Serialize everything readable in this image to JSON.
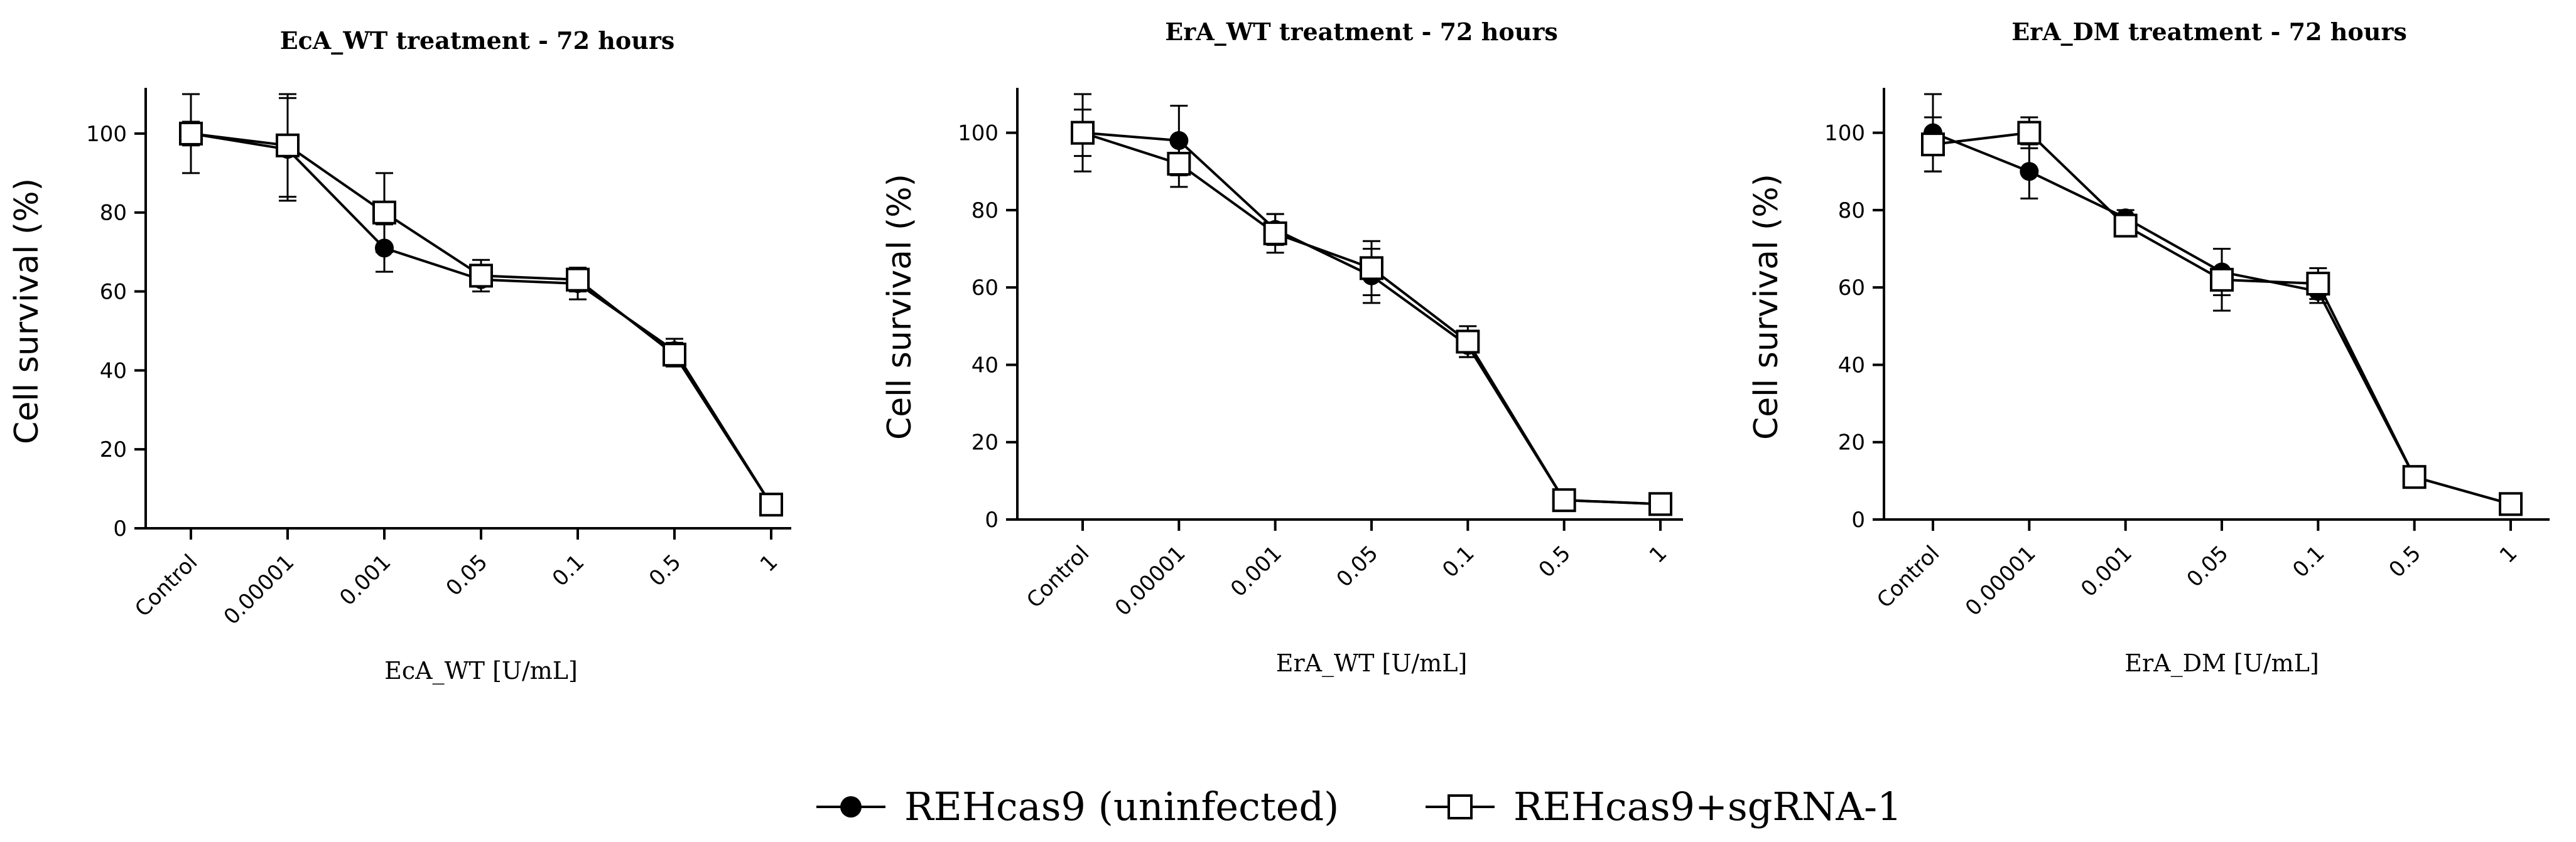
{
  "chart_data": [
    {
      "type": "line",
      "title": "EcA_WT treatment - 72 hours",
      "xlabel": "EcA_WT [U/mL]",
      "ylabel": "Cell survival (%)",
      "ylim": [
        0,
        110
      ],
      "yticks": [
        0,
        20,
        40,
        60,
        80,
        100
      ],
      "categories": [
        "Control",
        "0.00001",
        "0.001",
        "0.05",
        "0.1",
        "0.5",
        "1"
      ],
      "series": [
        {
          "name": "REHcas9 (uninfected)",
          "marker": "filled-circle",
          "values": [
            100,
            96,
            71,
            63,
            62,
            45,
            6
          ],
          "errors": [
            10,
            13,
            6,
            3,
            4,
            3,
            2
          ]
        },
        {
          "name": "REHcas9+sgRNA-1",
          "marker": "open-square",
          "values": [
            100,
            97,
            80,
            64,
            63,
            44,
            6
          ],
          "errors": [
            3,
            13,
            10,
            4,
            3,
            3,
            2
          ]
        }
      ]
    },
    {
      "type": "line",
      "title": "ErA_WT treatment - 72 hours",
      "xlabel": "ErA_WT [U/mL]",
      "ylabel": "Cell survival (%)",
      "ylim": [
        0,
        110
      ],
      "yticks": [
        0,
        20,
        40,
        60,
        80,
        100
      ],
      "categories": [
        "Control",
        "0.00001",
        "0.001",
        "0.05",
        "0.1",
        "0.5",
        "1"
      ],
      "series": [
        {
          "name": "REHcas9 (uninfected)",
          "marker": "filled-circle",
          "values": [
            100,
            98,
            75,
            63,
            45,
            5,
            4
          ],
          "errors": [
            10,
            9,
            4,
            7,
            3,
            2,
            2
          ]
        },
        {
          "name": "REHcas9+sgRNA-1",
          "marker": "open-square",
          "values": [
            100,
            92,
            74,
            65,
            46,
            5,
            4
          ],
          "errors": [
            6,
            6,
            5,
            7,
            4,
            2,
            2
          ]
        }
      ]
    },
    {
      "type": "line",
      "title": "ErA_DM treatment - 72 hours",
      "xlabel": "ErA_DM [U/mL]",
      "ylabel": "Cell survival (%)",
      "ylim": [
        0,
        110
      ],
      "yticks": [
        0,
        20,
        40,
        60,
        80,
        100
      ],
      "categories": [
        "Control",
        "0.00001",
        "0.001",
        "0.05",
        "0.1",
        "0.5",
        "1"
      ],
      "series": [
        {
          "name": "REHcas9 (uninfected)",
          "marker": "filled-circle",
          "values": [
            100,
            90,
            78,
            64,
            59,
            11,
            4
          ],
          "errors": [
            10,
            7,
            2,
            6,
            3,
            2,
            1
          ]
        },
        {
          "name": "REHcas9+sgRNA-1",
          "marker": "open-square",
          "values": [
            97,
            100,
            76,
            62,
            61,
            11,
            4
          ],
          "errors": [
            7,
            4,
            2,
            8,
            4,
            2,
            1
          ]
        }
      ]
    }
  ],
  "legend": {
    "position": "bottom-center",
    "items": [
      {
        "label": "REHcas9 (uninfected)",
        "marker": "filled-circle"
      },
      {
        "label": "REHcas9+sgRNA-1",
        "marker": "open-square"
      }
    ]
  }
}
